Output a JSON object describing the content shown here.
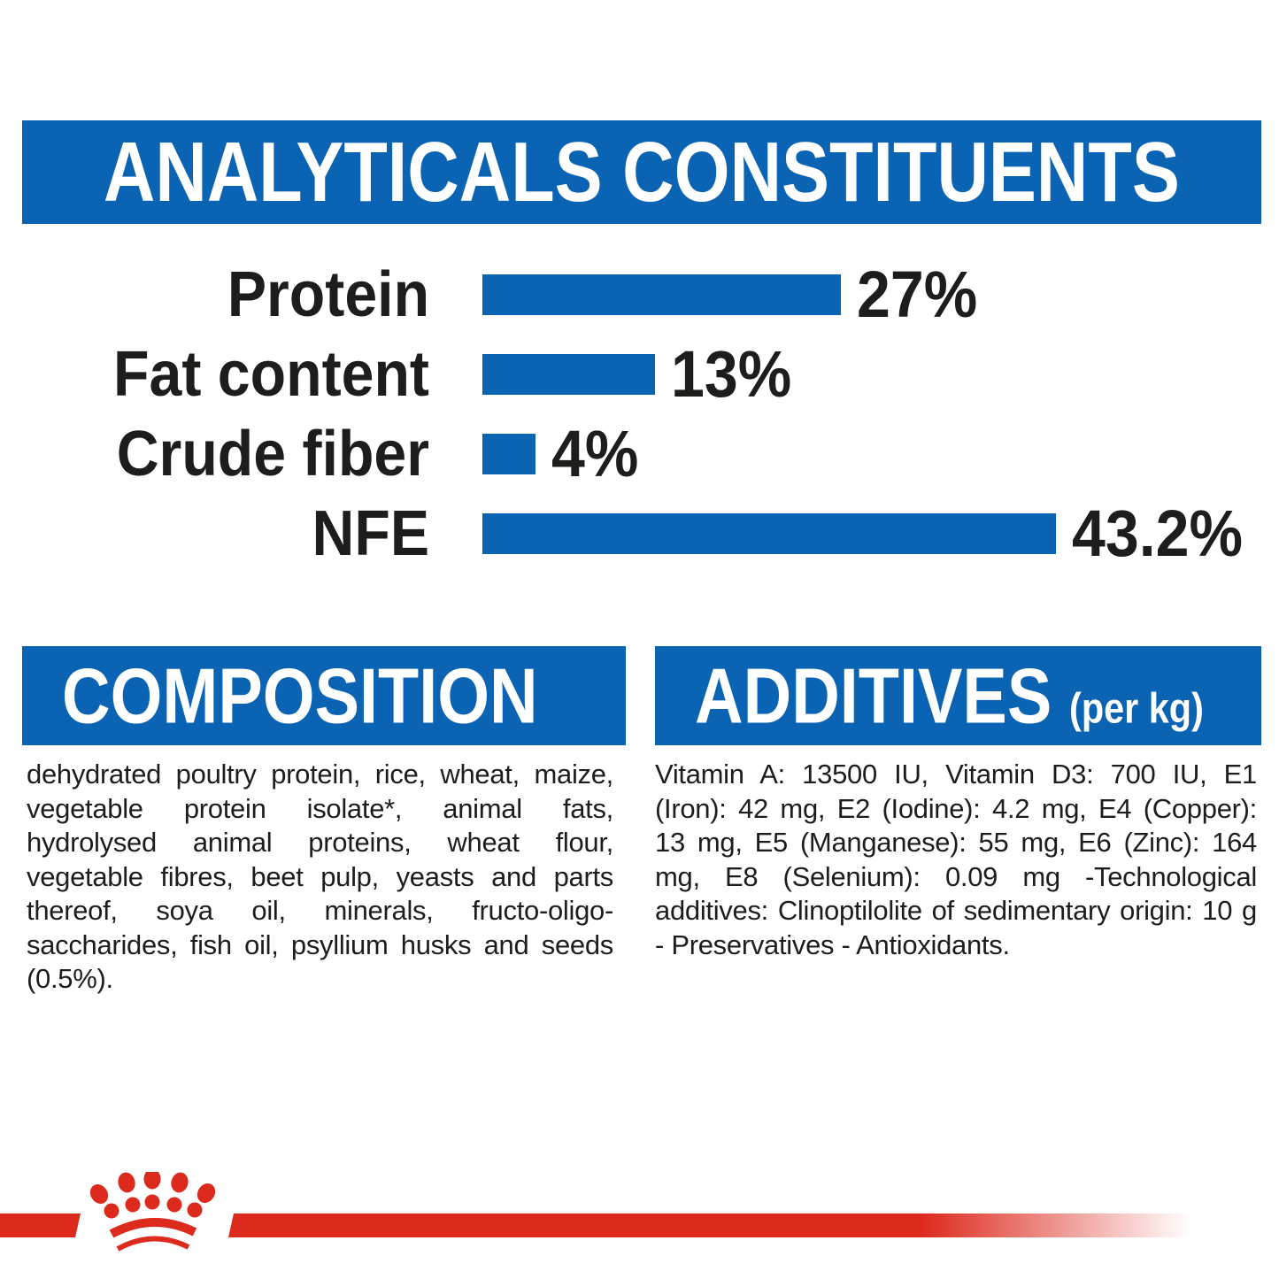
{
  "colors": {
    "brand_blue": "#0b63b3",
    "brand_red": "#dc2a1d",
    "text_black": "#1d1d1b"
  },
  "chart_data": {
    "type": "bar",
    "orientation": "horizontal",
    "title": "ANALYTICALS CONSTITUENTS",
    "unit": "%",
    "categories": [
      "Protein",
      "Fat content",
      "Crude fiber",
      "NFE"
    ],
    "values": [
      27,
      13,
      4,
      43.2
    ],
    "value_labels": [
      "27%",
      "13%",
      "4%",
      "43.2%"
    ],
    "bar_color": "#0b63b3",
    "xlim": [
      0,
      45
    ],
    "grid": false,
    "legend": false,
    "value_label_position": "right-of-bar",
    "category_label_position": "left-of-bar"
  },
  "composition": {
    "title": "COMPOSITION",
    "body": "dehydrated poultry protein, rice, wheat, maize, vegetable protein isolate*, animal fats, hydrolysed animal proteins, wheat flour, vegetable fibres, beet pulp, yeasts and parts thereof, soya oil, minerals, fructo-oligo-saccharides, fish oil, psyllium husks and seeds (0.5%)."
  },
  "additives": {
    "title": "ADDITIVES",
    "title_suffix": "(per kg)",
    "body": "Vitamin A: 13500 IU, Vitamin D3: 700 IU, E1 (Iron): 42 mg, E2 (Iodine): 4.2 mg, E4 (Copper): 13 mg, E5 (Manganese): 55 mg, E6 (Zinc): 164 mg, E8 (Selenium): 0.09 mg -Technological additives: Clinoptilolite of sedimentary origin: 10 g - Preservatives - Antioxidants."
  },
  "footer": {
    "logo": "royal-canin-crown"
  }
}
